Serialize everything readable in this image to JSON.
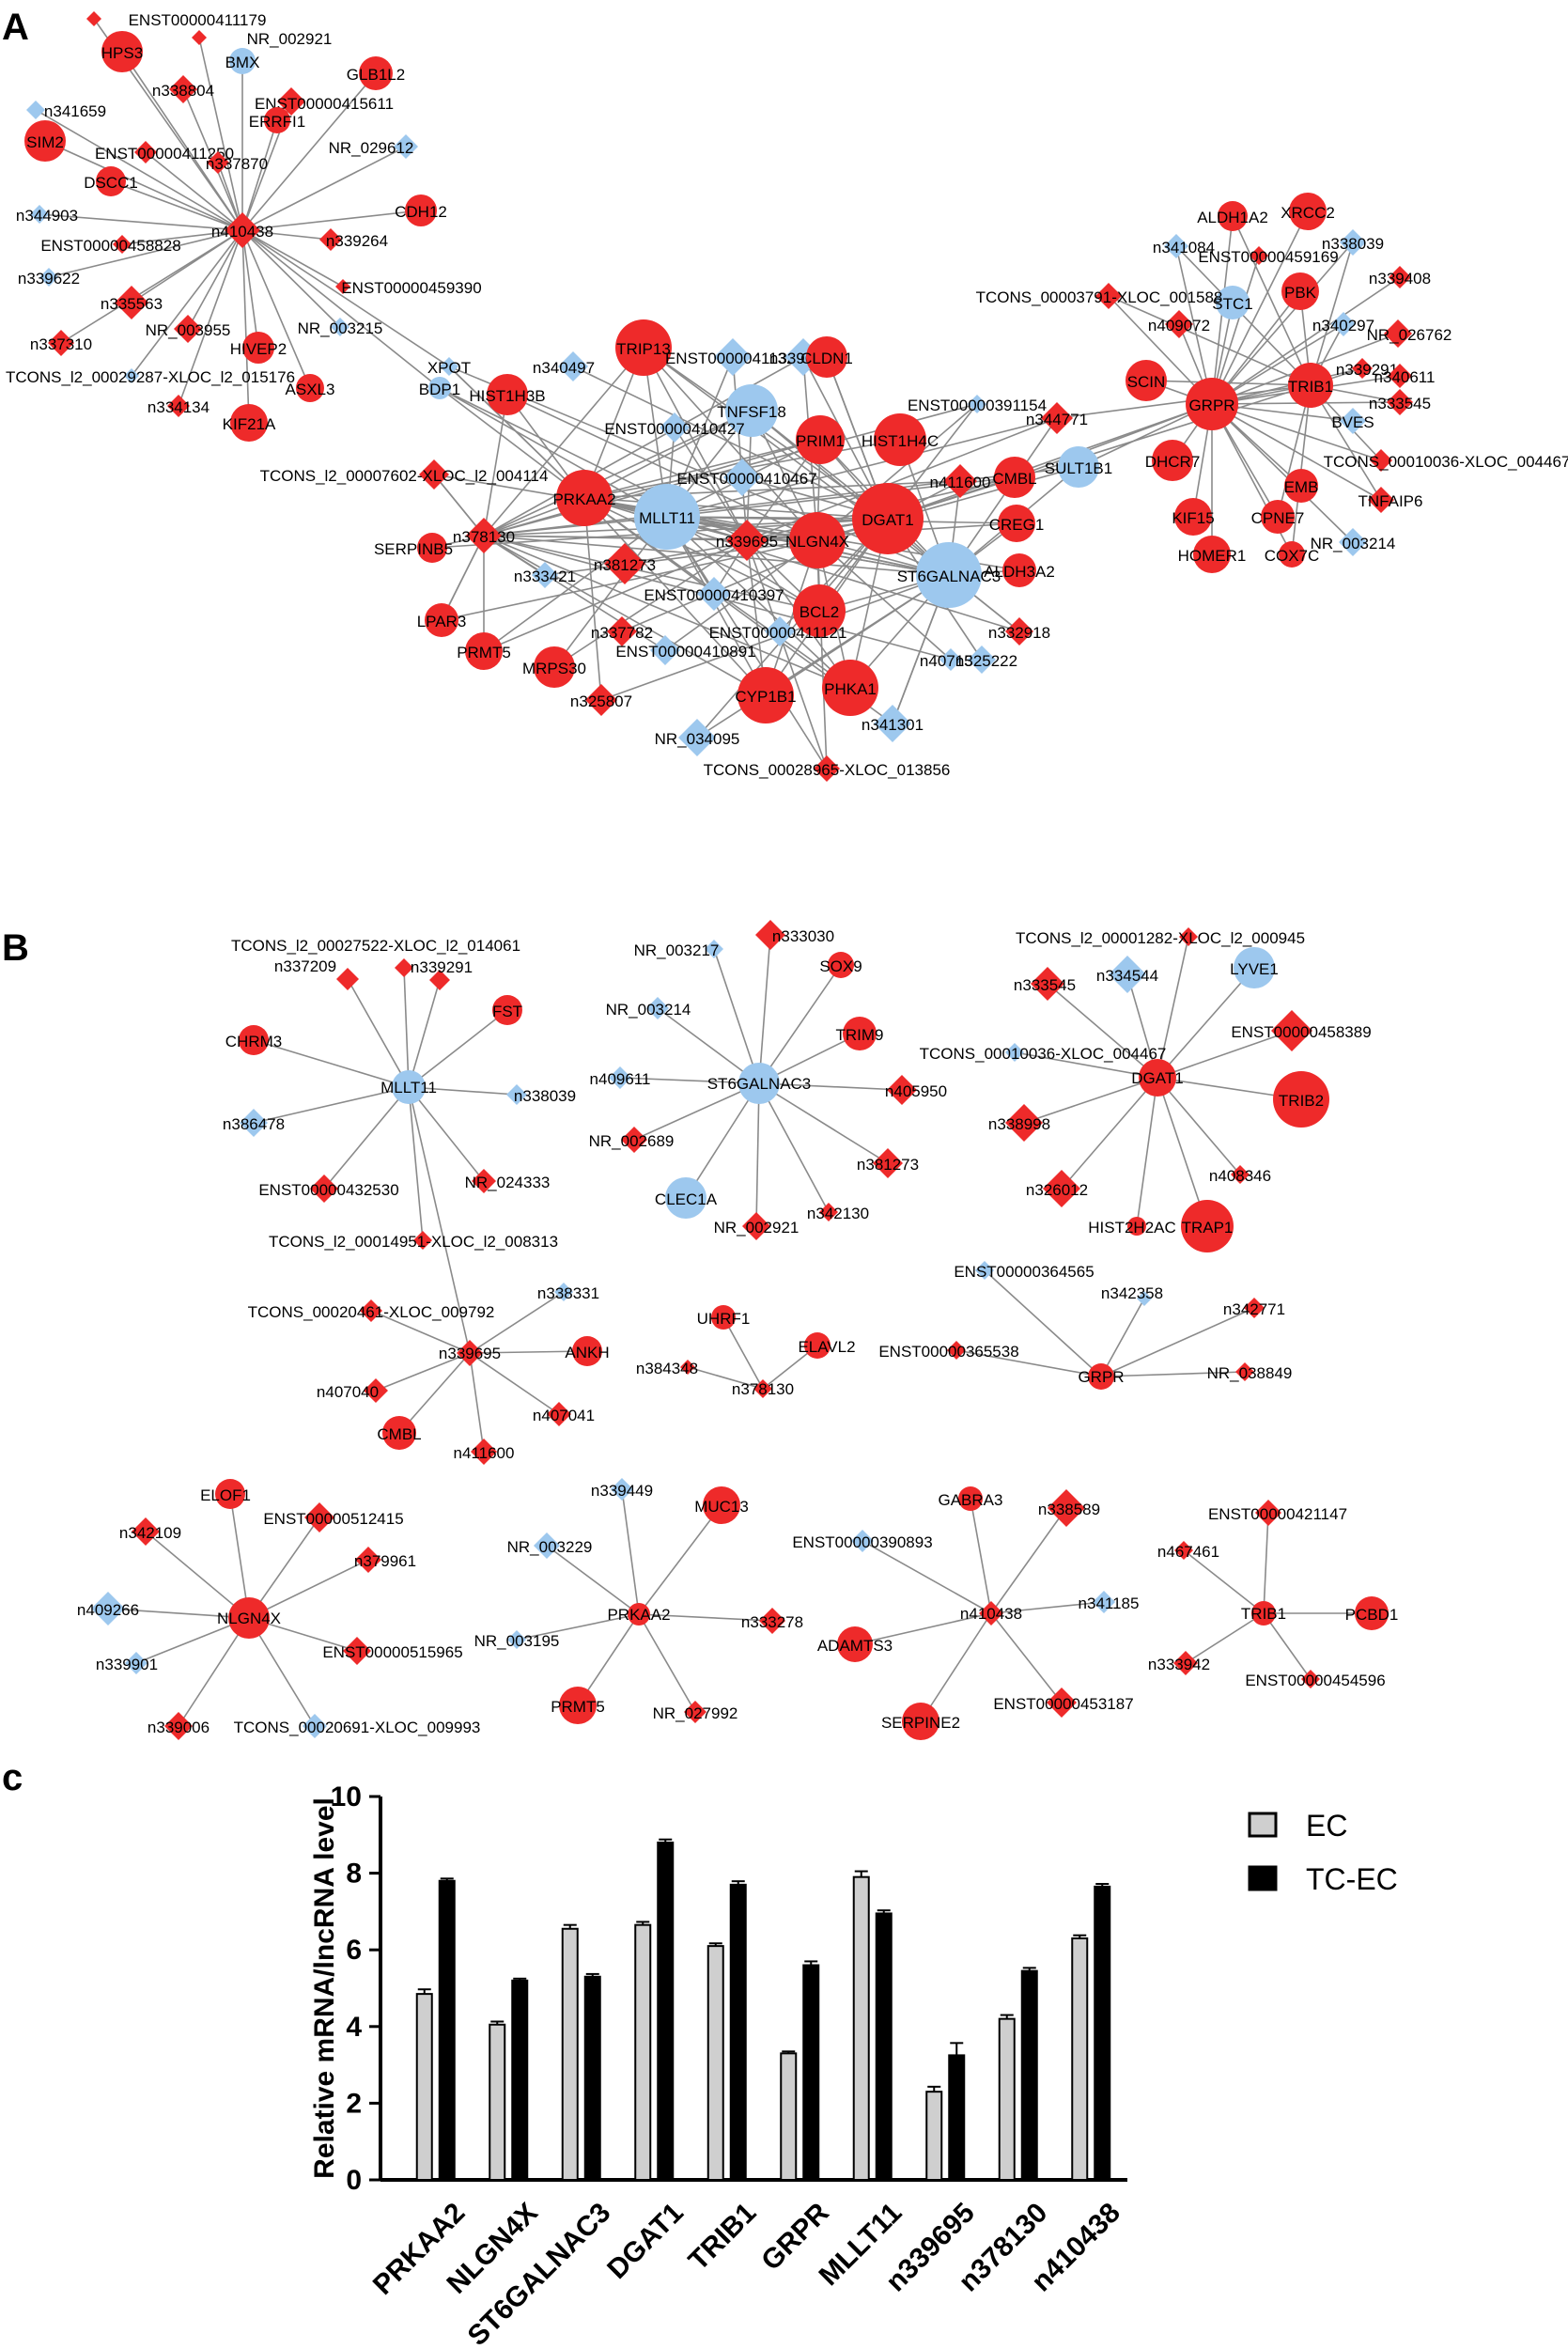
{
  "panels": {
    "a": "A",
    "b": "B",
    "c": "c"
  },
  "colors": {
    "mrna": "#ee2a2a",
    "lncrna": "#9dc8ee",
    "edge": "#8a8a8a",
    "ec_bar": "#cfcfcf",
    "tcec_bar": "#000000"
  },
  "network_a": {
    "hubs": [
      "n410438",
      "PRKAA2",
      "MLLT11",
      "NLGN4X",
      "DGAT1",
      "ST6GALNAC3",
      "n339695",
      "n378130",
      "GRPR",
      "TRIB1"
    ],
    "n410438_neighbors": [
      "ENST00000411179",
      "NR_002921",
      "HPS3",
      "BMX",
      "GLB1L2",
      "n338804",
      "ENST00000415611",
      "ERRFI1",
      "n341659",
      "SIM2",
      "ENST00000411250",
      "n337870",
      "NR_029612",
      "DSCC1",
      "n344903",
      "CDH12",
      "ENST00000458828",
      "n339264",
      "n339622",
      "ENST00000459390",
      "n335563",
      "NR_003955",
      "NR_003215",
      "n337310",
      "HIVEP2",
      "TCONS_l2_00029287-XLOC_l2_015176",
      "ASXL3",
      "n334134",
      "KIF21A"
    ],
    "central_nodes": [
      "XPOT",
      "BDP1",
      "HIST1H3B",
      "n340497",
      "TRIP13",
      "ENST00000411324",
      "n339619",
      "CLDN1",
      "TNFSF18",
      "ENST00000410427",
      "ENST00000391154",
      "PRIM1",
      "HIST1H4C",
      "n344771",
      "TCONS_l2_00007602-XLOC_l2_004114",
      "ENST00000410467",
      "n411600",
      "CMBL",
      "SULT1B1",
      "SERPINB5",
      "n339695",
      "CREG1",
      "n333421",
      "n381273",
      "ALDH3A2",
      "ENST00000410397",
      "LPAR3",
      "n337782",
      "BCL2",
      "PRMT5",
      "ENST00000410891",
      "ENST00000411121",
      "n332918",
      "MRPS30",
      "n407157",
      "n325222",
      "n325807",
      "CYP1B1",
      "PHKA1",
      "NR_034095",
      "n341301",
      "TCONS_00028965-XLOC_013856"
    ],
    "grpr_trib1_nodes": [
      "ALDH1A2",
      "XRCC2",
      "n341084",
      "ENST00000459169",
      "n338039",
      "STC1",
      "PBK",
      "n339408",
      "TCONS_00003791-XLOC_001588",
      "n409072",
      "n340297",
      "NR_026762",
      "n339291",
      "n340611",
      "SCIN",
      "BVES",
      "n333545",
      "DHCR7",
      "TCONS_00010036-XLOC_004467",
      "EMB",
      "CPNE7",
      "KIF15",
      "TNFAIP6",
      "HOMER1",
      "COX7C",
      "NR_003214"
    ]
  },
  "network_b": {
    "MLLT11": {
      "hub": "MLLT11",
      "nodes": [
        "TCONS_l2_00027522-XLOC_l2_014061",
        "n337209",
        "n339291",
        "FST",
        "CHRM3",
        "n338039",
        "n386478",
        "NR_024333",
        "ENST00000432530",
        "TCONS_l2_00014951-XLOC_l2_008313"
      ]
    },
    "ST6GALNAC3": {
      "hub": "ST6GALNAC3",
      "nodes": [
        "n333030",
        "NR_003217",
        "SOX9",
        "NR_003214",
        "TRIM9",
        "n409611",
        "n405950",
        "NR_002689",
        "n381273",
        "CLEC1A",
        "NR_002921",
        "n342130"
      ]
    },
    "DGAT1": {
      "hub": "DGAT1",
      "nodes": [
        "TCONS_l2_00001282-XLOC_l2_000945",
        "n333545",
        "n334544",
        "LYVE1",
        "ENST00000458389",
        "TCONS_00010036-XLOC_004467",
        "TRIB2",
        "n338998",
        "n408346",
        "n326012",
        "HIST2H2AC",
        "TRAP1"
      ]
    },
    "n339695": {
      "hub": "n339695",
      "nodes": [
        "n338331",
        "TCONS_00020461-XLOC_009792",
        "ANKH",
        "n407040",
        "n407041",
        "CMBL",
        "n411600"
      ]
    },
    "n378130": {
      "hub": "n378130",
      "nodes": [
        "UHRF1",
        "ELAVL2",
        "n384348"
      ]
    },
    "GRPR": {
      "hub": "GRPR",
      "nodes": [
        "ENST00000364565",
        "n342358",
        "n342771",
        "ENST00000365538",
        "NR_038849"
      ]
    },
    "NLGN4X": {
      "hub": "NLGN4X",
      "nodes": [
        "ELOF1",
        "ENST00000512415",
        "n342109",
        "n379961",
        "n409266",
        "ENST00000515965",
        "n339901",
        "n339006",
        "TCONS_00020691-XLOC_009993"
      ]
    },
    "PRKAA2": {
      "hub": "PRKAA2",
      "nodes": [
        "n339449",
        "MUC13",
        "NR_003229",
        "n333278",
        "NR_003195",
        "PRMT5",
        "NR_027992"
      ]
    },
    "n410438": {
      "hub": "n410438",
      "nodes": [
        "GABRA3",
        "n338589",
        "ENST00000390893",
        "n341185",
        "ADAMTS3",
        "SERPINE2",
        "ENST00000453187"
      ]
    },
    "TRIB1": {
      "hub": "TRIB1",
      "nodes": [
        "ENST00000421147",
        "n467461",
        "PCBD1",
        "n333942",
        "ENST00000454596"
      ]
    }
  },
  "chart_data": {
    "type": "bar",
    "title": "",
    "xlabel": "",
    "ylabel": "Relative mRNA/lncRNA level",
    "ylim": [
      0,
      10
    ],
    "yticks": [
      0,
      2,
      4,
      6,
      8,
      10
    ],
    "categories": [
      "PRKAA2",
      "NLGN4X",
      "ST6GALNAC3",
      "DGAT1",
      "TRIB1",
      "GRPR",
      "MLLT11",
      "n339695",
      "n378130",
      "n410438"
    ],
    "series": [
      {
        "name": "EC",
        "values": [
          4.85,
          4.05,
          6.55,
          6.65,
          6.1,
          3.3,
          7.9,
          2.3,
          4.2,
          6.3
        ],
        "errors": [
          0.12,
          0.08,
          0.1,
          0.08,
          0.07,
          0.05,
          0.15,
          0.13,
          0.1,
          0.08
        ]
      },
      {
        "name": "TC-EC",
        "values": [
          7.8,
          5.2,
          5.3,
          8.8,
          7.7,
          5.6,
          6.95,
          3.25,
          5.45,
          7.65
        ],
        "errors": [
          0.06,
          0.05,
          0.07,
          0.08,
          0.09,
          0.1,
          0.08,
          0.32,
          0.08,
          0.07
        ]
      }
    ],
    "legend": [
      "EC",
      "TC-EC"
    ],
    "legend_position": "top-right"
  }
}
